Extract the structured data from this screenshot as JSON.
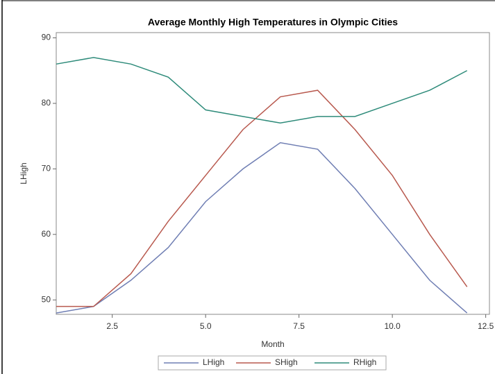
{
  "chart_data": {
    "type": "line",
    "title": "Average Monthly High Temperatures in Olympic Cities",
    "x_label": "Month",
    "y_label": "LHigh",
    "x": [
      1,
      2,
      3,
      4,
      5,
      6,
      7,
      8,
      9,
      10,
      11,
      12
    ],
    "series": [
      {
        "name": "LHigh",
        "color": "#6f7eb3",
        "values": [
          48,
          49,
          53,
          58,
          65,
          70,
          74,
          73,
          67,
          60,
          53,
          48
        ]
      },
      {
        "name": "SHigh",
        "color": "#b8594e",
        "values": [
          49,
          49,
          54,
          62,
          69,
          76,
          81,
          82,
          76,
          69,
          60,
          52
        ]
      },
      {
        "name": "RHigh",
        "color": "#2e8b7a",
        "values": [
          86,
          87,
          86,
          84,
          79,
          78,
          77,
          78,
          78,
          80,
          82,
          85
        ]
      }
    ],
    "xlim": [
      1,
      12.6
    ],
    "ylim": [
      47.8,
      90.8
    ],
    "xticks": [
      2.5,
      {
        "value": 5,
        "label": "5.0"
      },
      7.5,
      {
        "value": 10,
        "label": "10.0"
      },
      12.5
    ],
    "yticks": [
      50,
      60,
      70,
      80,
      90
    ],
    "legend": "bottom"
  }
}
